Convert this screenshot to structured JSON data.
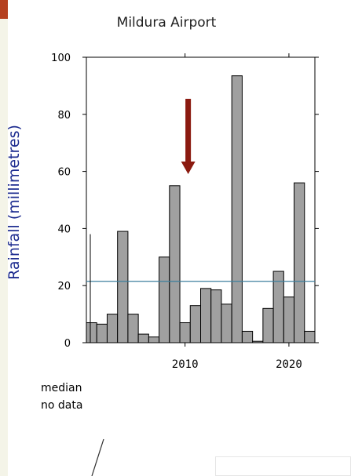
{
  "colors": {
    "slide_background": "#f4f4e8",
    "corner_accent": "#b5401f",
    "chart_background": "#ffffff",
    "bar_fill": "#a0a0a0",
    "bar_stroke": "#000000",
    "median_line": "#3d7f9e",
    "arrow": "#8b1a10",
    "ylabel": "#1c2b8f"
  },
  "chart_data": {
    "type": "bar",
    "title": "Mildura Airport",
    "xlabel": "",
    "ylabel": "Rainfall (millimetres)",
    "x": [
      2001,
      2002,
      2003,
      2004,
      2005,
      2006,
      2007,
      2008,
      2009,
      2010,
      2011,
      2012,
      2013,
      2014,
      2015,
      2016,
      2017,
      2018,
      2019,
      2020,
      2021,
      2022
    ],
    "values": [
      7,
      6.5,
      10,
      39,
      10,
      3,
      2,
      30,
      55,
      7,
      13,
      19,
      18.5,
      13.5,
      93.5,
      4,
      0.5,
      12,
      25,
      16,
      56,
      4
    ],
    "xlim": [
      2000.5,
      2022.5
    ],
    "ylim": [
      0,
      100
    ],
    "yticks": [
      0,
      20,
      40,
      60,
      80,
      100
    ],
    "xticks": [
      2010,
      2020
    ],
    "median": 21.5,
    "arrow_at_year": 2010.3,
    "legend": [
      "median",
      "no data"
    ]
  }
}
